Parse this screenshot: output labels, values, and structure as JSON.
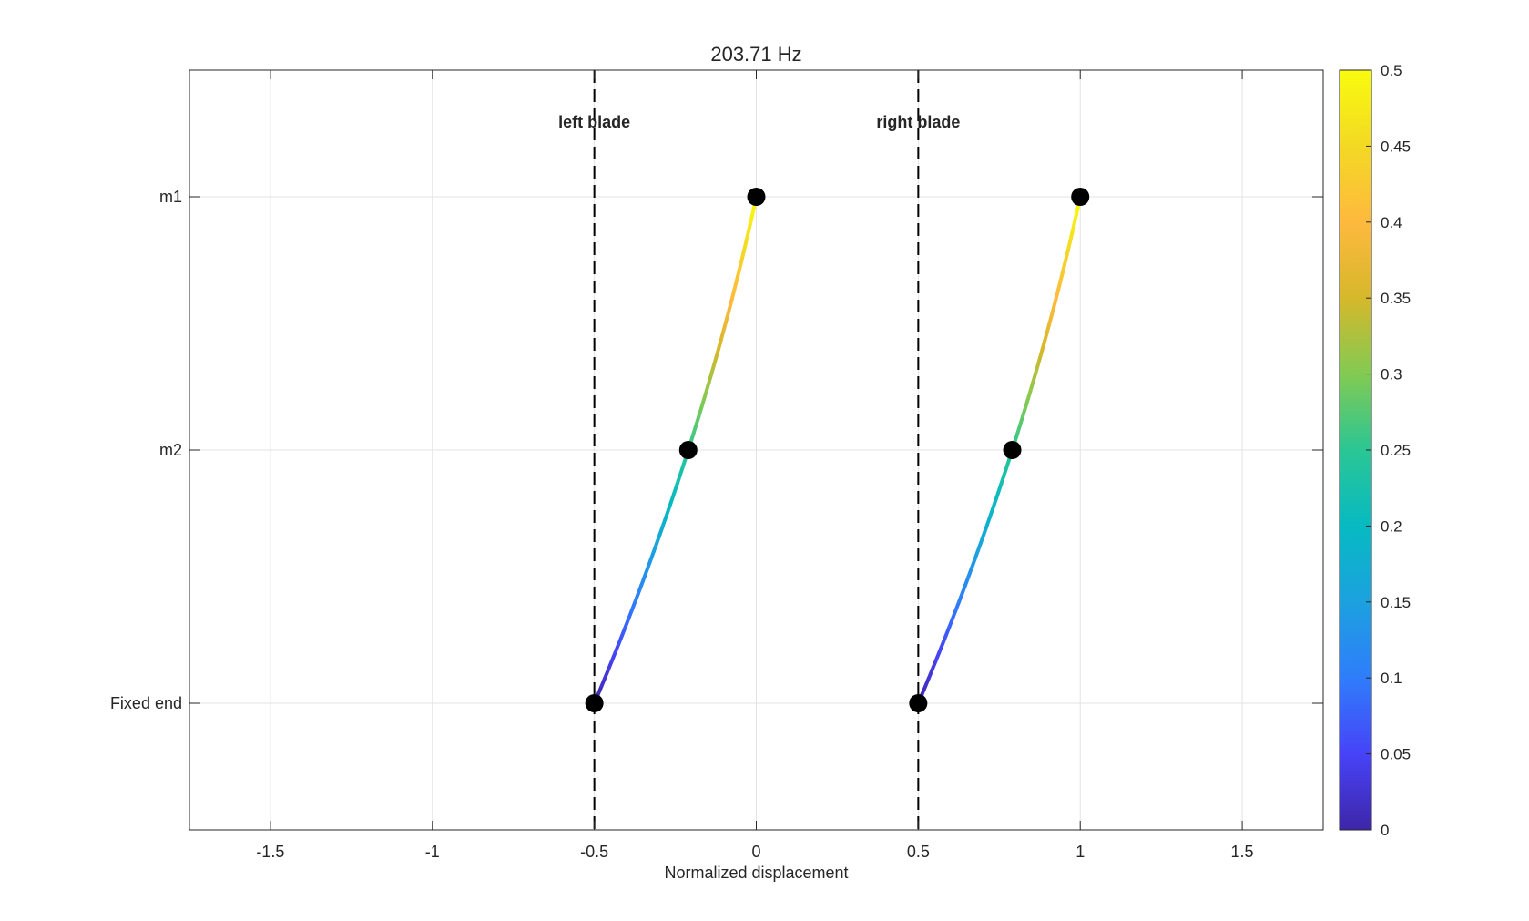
{
  "chart_data": {
    "type": "line",
    "title": "203.71 Hz",
    "xlabel": "Normalized displacement",
    "ylabel": "",
    "xlim": [
      -1.75,
      1.75
    ],
    "ylim": [
      -0.5,
      2.5
    ],
    "grid": true,
    "xticks": [
      -1.5,
      -1,
      -0.5,
      0,
      0.5,
      1,
      1.5
    ],
    "xtick_labels": [
      "-1.5",
      "-1",
      "-0.5",
      "0",
      "0.5",
      "1",
      "1.5"
    ],
    "yticks": [
      0,
      1,
      2
    ],
    "ytick_labels": [
      "Fixed end",
      "m2",
      "m1"
    ],
    "reference_lines": [
      {
        "x": -0.5,
        "label": "left blade"
      },
      {
        "x": 0.5,
        "label": "right blade"
      }
    ],
    "series": [
      {
        "points": [
          {
            "x": -0.5,
            "y": 0
          },
          {
            "x": -0.21,
            "y": 1
          },
          {
            "x": 0,
            "y": 2
          }
        ]
      },
      {
        "points": [
          {
            "x": 0.5,
            "y": 0
          },
          {
            "x": 0.79,
            "y": 1
          },
          {
            "x": 1,
            "y": 2
          }
        ]
      }
    ],
    "colorbar": {
      "range": [
        0,
        0.5
      ],
      "ticks": [
        0,
        0.05,
        0.1,
        0.15,
        0.2,
        0.25,
        0.3,
        0.35,
        0.4,
        0.45,
        0.5
      ],
      "tick_labels": [
        "0",
        "0.05",
        "0.1",
        "0.15",
        "0.2",
        "0.25",
        "0.3",
        "0.35",
        "0.4",
        "0.45",
        "0.5"
      ],
      "colormap": [
        "#3e26a8",
        "#4743f8",
        "#2f7dfb",
        "#1ca1df",
        "#07bac2",
        "#2ac694",
        "#82ca52",
        "#d6b82b",
        "#feb93e",
        "#f3d924",
        "#f9fb0e"
      ]
    }
  }
}
